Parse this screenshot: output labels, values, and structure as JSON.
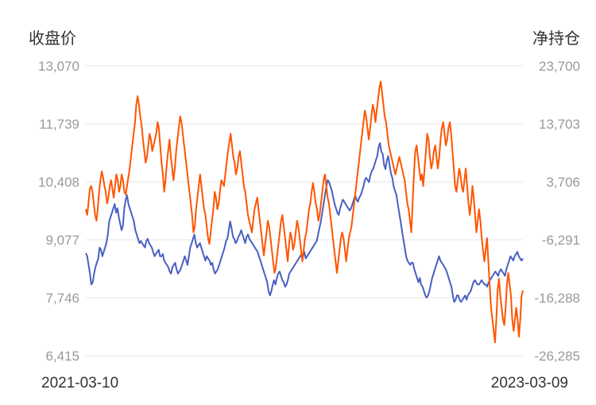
{
  "chart_data": {
    "type": "line",
    "y_left_label": "收盘价",
    "y_right_label": "净持仓",
    "y_left_ticks": [
      "13,070",
      "11,739",
      "10,408",
      "9,077",
      "7,746",
      "6,415"
    ],
    "y_right_ticks": [
      "23,700",
      "13,703",
      "3,706",
      "-6,291",
      "-16,288",
      "-26,285"
    ],
    "y_left_range": [
      6415,
      13070
    ],
    "y_right_range": [
      -26285,
      23700
    ],
    "x_start_label": "2021-03-10",
    "x_end_label": "2023-03-09",
    "grid": true,
    "colors": {
      "price": "#4a5fc1",
      "net": "#ff5500"
    },
    "series": [
      {
        "key": "price",
        "axis": "left",
        "values": [
          8770,
          8700,
          8500,
          8300,
          8050,
          8100,
          8300,
          8450,
          8550,
          8650,
          8900,
          8850,
          8700,
          8800,
          8900,
          9000,
          9200,
          9500,
          9600,
          9700,
          9800,
          9900,
          9700,
          9800,
          9600,
          9450,
          9300,
          9400,
          9800,
          10000,
          10100,
          9900,
          9800,
          9700,
          9600,
          9500,
          9300,
          9200,
          9100,
          9000,
          9050,
          9000,
          8950,
          8900,
          9050,
          9100,
          9000,
          8950,
          8900,
          8800,
          8700,
          8750,
          8800,
          8850,
          8700,
          8700,
          8750,
          8600,
          8550,
          8500,
          8450,
          8350,
          8300,
          8450,
          8500,
          8550,
          8400,
          8300,
          8350,
          8400,
          8500,
          8600,
          8700,
          8600,
          8500,
          8700,
          8900,
          9000,
          9100,
          9200,
          9000,
          8900,
          8950,
          9000,
          8900,
          8800,
          8700,
          8600,
          8700,
          8650,
          8600,
          8500,
          8550,
          8400,
          8300,
          8350,
          8400,
          8500,
          8600,
          8700,
          8800,
          8900,
          9050,
          9100,
          9300,
          9500,
          9350,
          9150,
          9100,
          9000,
          9050,
          9150,
          9200,
          9300,
          9200,
          9100,
          9000,
          9150,
          9200,
          9100,
          9050,
          9000,
          8950,
          8900,
          8850,
          8800,
          8700,
          8600,
          8500,
          8400,
          8300,
          8200,
          8100,
          7900,
          7800,
          7900,
          8050,
          8150,
          8050,
          8200,
          8300,
          8350,
          8250,
          8150,
          8100,
          8000,
          8050,
          8150,
          8300,
          8350,
          8400,
          8450,
          8500,
          8550,
          8600,
          8650,
          8700,
          8750,
          8700,
          8800,
          8650,
          8700,
          8750,
          8800,
          8850,
          8900,
          8950,
          9000,
          9050,
          9200,
          9350,
          9500,
          9700,
          9900,
          10100,
          10300,
          10450,
          10400,
          10300,
          10200,
          10050,
          9900,
          9800,
          9700,
          9650,
          9800,
          9900,
          10000,
          9950,
          9900,
          9850,
          9800,
          9750,
          9800,
          9900,
          10000,
          10100,
          10000,
          9950,
          10050,
          10100,
          10200,
          10300,
          10450,
          10500,
          10450,
          10400,
          10550,
          10650,
          10700,
          10800,
          10900,
          11000,
          11200,
          11300,
          11100,
          11050,
          10800,
          10700,
          10900,
          11000,
          10800,
          10600,
          10500,
          10300,
          10200,
          10100,
          9900,
          9700,
          9500,
          9300,
          9100,
          8900,
          8700,
          8600,
          8550,
          8500,
          8550,
          8550,
          8400,
          8300,
          8200,
          8100,
          8200,
          8050,
          8000,
          7900,
          7800,
          7750,
          7800,
          7900,
          8050,
          8200,
          8300,
          8400,
          8500,
          8600,
          8700,
          8600,
          8550,
          8500,
          8450,
          8400,
          8300,
          8200,
          8100,
          8000,
          7800,
          7650,
          7700,
          7800,
          7800,
          7700,
          7650,
          7700,
          7750,
          7800,
          7700,
          7800,
          7850,
          7900,
          8000,
          8100,
          8150,
          8100,
          8050,
          8050,
          8100,
          8150,
          8100,
          8050,
          8050,
          8000,
          8100,
          8150,
          8200,
          8250,
          8300,
          8350,
          8300,
          8250,
          8350,
          8400,
          8350,
          8300,
          8250,
          8400,
          8500,
          8600,
          8700,
          8650,
          8600,
          8700,
          8750,
          8800,
          8700,
          8650,
          8600,
          8650
        ]
      },
      {
        "key": "net",
        "axis": "right",
        "values": [
          -1000,
          -2000,
          0,
          2500,
          3000,
          2000,
          0,
          -2000,
          -3000,
          -1000,
          2000,
          4000,
          5500,
          4500,
          3000,
          2000,
          0,
          1000,
          3000,
          4000,
          2500,
          1000,
          3000,
          5000,
          4000,
          2000,
          3000,
          5000,
          4000,
          2000,
          1500,
          3000,
          4500,
          6000,
          8000,
          10000,
          12000,
          14000,
          17000,
          18500,
          17000,
          15000,
          13500,
          11000,
          9000,
          7000,
          8000,
          10000,
          12000,
          11000,
          9000,
          10000,
          11000,
          12000,
          14000,
          13000,
          10000,
          7000,
          5000,
          2000,
          4000,
          7000,
          9000,
          11000,
          8000,
          6000,
          4000,
          6000,
          9000,
          11000,
          13000,
          15000,
          14000,
          12000,
          10000,
          8000,
          6000,
          4000,
          2000,
          0,
          -2000,
          -5000,
          -4000,
          -1000,
          1000,
          3000,
          5000,
          3000,
          1000,
          -1000,
          -2000,
          -4000,
          -6000,
          -7000,
          -5000,
          -3000,
          -1000,
          2000,
          1000,
          -1000,
          0,
          2000,
          4000,
          3500,
          3000,
          5000,
          7000,
          9000,
          10500,
          12000,
          10000,
          8000,
          7000,
          5000,
          6000,
          8000,
          9000,
          7000,
          5000,
          3000,
          2000,
          0,
          -2000,
          -3000,
          -4000,
          -5000,
          -3000,
          -1000,
          0,
          1000,
          -1000,
          -3000,
          -5000,
          -7000,
          -9000,
          -7000,
          -5000,
          -3000,
          -4000,
          -6000,
          -8000,
          -10000,
          -12000,
          -11000,
          -9000,
          -7000,
          -5000,
          -3000,
          -2000,
          -4000,
          -6000,
          -8000,
          -10000,
          -7000,
          -5000,
          -6000,
          -8000,
          -7000,
          -5000,
          -3000,
          -4000,
          -6000,
          -8000,
          -10000,
          -8000,
          -6000,
          -5000,
          -3000,
          -1000,
          0,
          2000,
          3500,
          2000,
          0,
          -1000,
          -3000,
          -2000,
          0,
          2000,
          4000,
          5000,
          3000,
          1000,
          0,
          -2000,
          -4000,
          -6000,
          -8000,
          -10000,
          -12000,
          -10000,
          -8000,
          -6000,
          -5000,
          -6000,
          -8000,
          -10000,
          -8000,
          -6000,
          -5000,
          -4000,
          -2000,
          0,
          2000,
          4000,
          6000,
          8000,
          10000,
          12000,
          14000,
          16000,
          15000,
          13000,
          11000,
          13000,
          15000,
          17000,
          16000,
          14000,
          16000,
          18000,
          20000,
          21000,
          19000,
          17000,
          15000,
          14000,
          12000,
          10000,
          9000,
          8000,
          7000,
          6000,
          5000,
          6000,
          7000,
          8000,
          7000,
          6000,
          5000,
          4000,
          2000,
          0,
          -1000,
          -3000,
          -5000,
          0,
          5000,
          9000,
          10000,
          8000,
          6000,
          4000,
          5000,
          3000,
          6000,
          9000,
          12000,
          11000,
          8000,
          6000,
          7000,
          9000,
          10000,
          8000,
          6000,
          8000,
          11000,
          13000,
          14000,
          12000,
          10000,
          11000,
          13000,
          14000,
          12000,
          9000,
          6000,
          3000,
          2000,
          4000,
          6000,
          5000,
          3000,
          2000,
          4000,
          6000,
          3000,
          0,
          -2000,
          0,
          3000,
          1000,
          -2000,
          -5000,
          -3000,
          -1000,
          -3000,
          -6000,
          -8000,
          -10000,
          -8000,
          -6000,
          -10000,
          -14000,
          -18000,
          -20000,
          -22000,
          -24000,
          -20000,
          -15000,
          -13000,
          -16000,
          -18000,
          -20000,
          -21000,
          -18000,
          -14000,
          -12000,
          -14000,
          -16000,
          -20000,
          -22000,
          -20000,
          -18000,
          -20000,
          -23000,
          -20000,
          -16000,
          -15000
        ]
      }
    ]
  }
}
